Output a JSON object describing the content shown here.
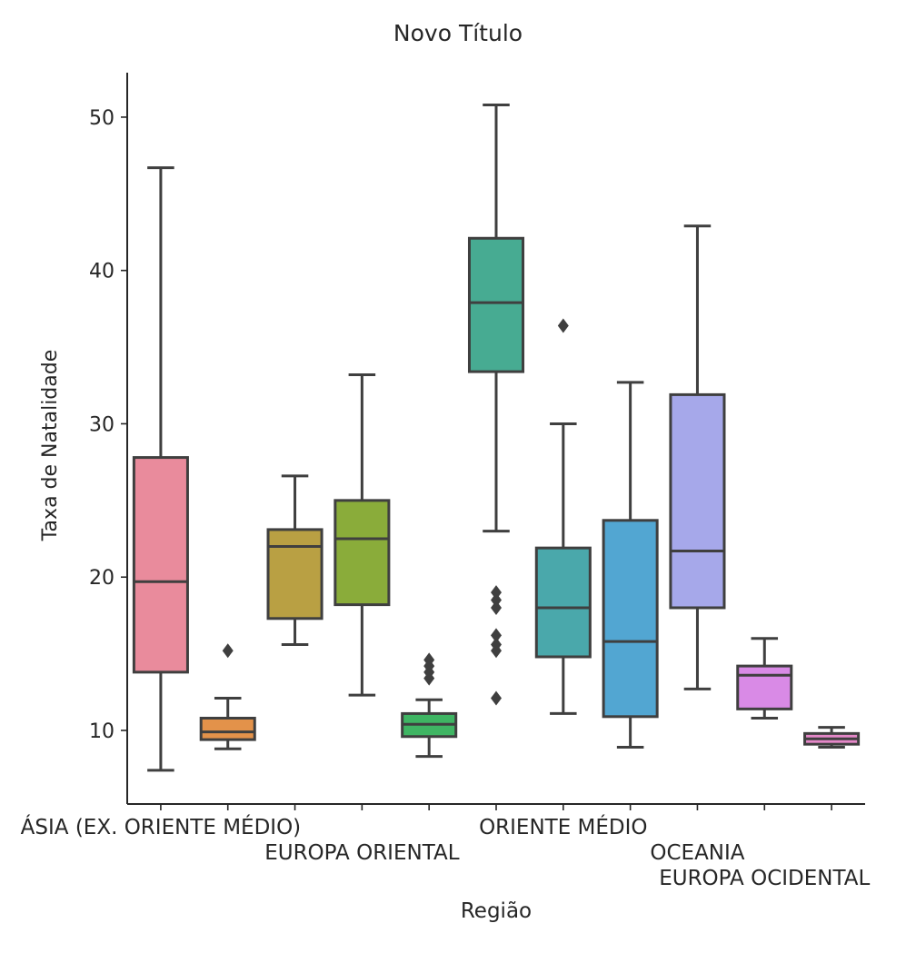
{
  "chart_data": {
    "type": "box",
    "title": "Novo Título",
    "xlabel": "Região",
    "ylabel": "Taxa de Natalidade",
    "ylim": [
      5.2,
      52.9
    ],
    "yticks": [
      10,
      20,
      30,
      40,
      50
    ],
    "grid": false,
    "xtick_labels": [
      {
        "index": 0,
        "label": "ÁSIA (EX. ORIENTE MÉDIO)"
      },
      {
        "index": 3,
        "label": "EUROPA ORIENTAL"
      },
      {
        "index": 6,
        "label": "ORIENTE MÉDIO"
      },
      {
        "index": 8,
        "label": "OCEANIA"
      },
      {
        "index": 9,
        "label": "EUROPA OCIDENTAL"
      }
    ],
    "boxes": [
      {
        "color": "#e98b9c",
        "whisker_low": 7.4,
        "q1": 13.8,
        "median": 19.7,
        "q3": 27.8,
        "whisker_high": 46.7,
        "outliers": []
      },
      {
        "color": "#e3924a",
        "whisker_low": 8.8,
        "q1": 9.4,
        "median": 9.9,
        "q3": 10.8,
        "whisker_high": 12.1,
        "outliers": [
          15.2
        ]
      },
      {
        "color": "#b9a043",
        "whisker_low": 15.6,
        "q1": 17.3,
        "median": 22.0,
        "q3": 23.1,
        "whisker_high": 26.6,
        "outliers": []
      },
      {
        "color": "#8aac3a",
        "whisker_low": 12.3,
        "q1": 18.2,
        "median": 22.5,
        "q3": 25.0,
        "whisker_high": 33.2,
        "outliers": []
      },
      {
        "color": "#3fb563",
        "whisker_low": 8.3,
        "q1": 9.6,
        "median": 10.4,
        "q3": 11.1,
        "whisker_high": 12.0,
        "outliers": [
          13.4,
          13.8,
          14.2,
          14.6
        ]
      },
      {
        "color": "#47ab92",
        "whisker_low": 23.0,
        "q1": 33.4,
        "median": 37.9,
        "q3": 42.1,
        "whisker_high": 50.8,
        "outliers": [
          12.1,
          15.2,
          15.6,
          16.2,
          18.0,
          18.5,
          19.0
        ]
      },
      {
        "color": "#4aa8ab",
        "whisker_low": 11.1,
        "q1": 14.8,
        "median": 18.0,
        "q3": 21.9,
        "whisker_high": 30.0,
        "outliers": [
          36.4
        ]
      },
      {
        "color": "#52a6d2",
        "whisker_low": 8.9,
        "q1": 10.9,
        "median": 15.8,
        "q3": 23.7,
        "whisker_high": 32.7,
        "outliers": []
      },
      {
        "color": "#a6a8ea",
        "whisker_low": 12.7,
        "q1": 18.0,
        "median": 21.7,
        "q3": 31.9,
        "whisker_high": 42.9,
        "outliers": []
      },
      {
        "color": "#d98ae6",
        "whisker_low": 10.8,
        "q1": 11.4,
        "median": 13.6,
        "q3": 14.2,
        "whisker_high": 16.0,
        "outliers": []
      },
      {
        "color": "#e588c8",
        "whisker_low": 8.9,
        "q1": 9.1,
        "median": 9.45,
        "q3": 9.8,
        "whisker_high": 10.2,
        "outliers": []
      }
    ]
  }
}
